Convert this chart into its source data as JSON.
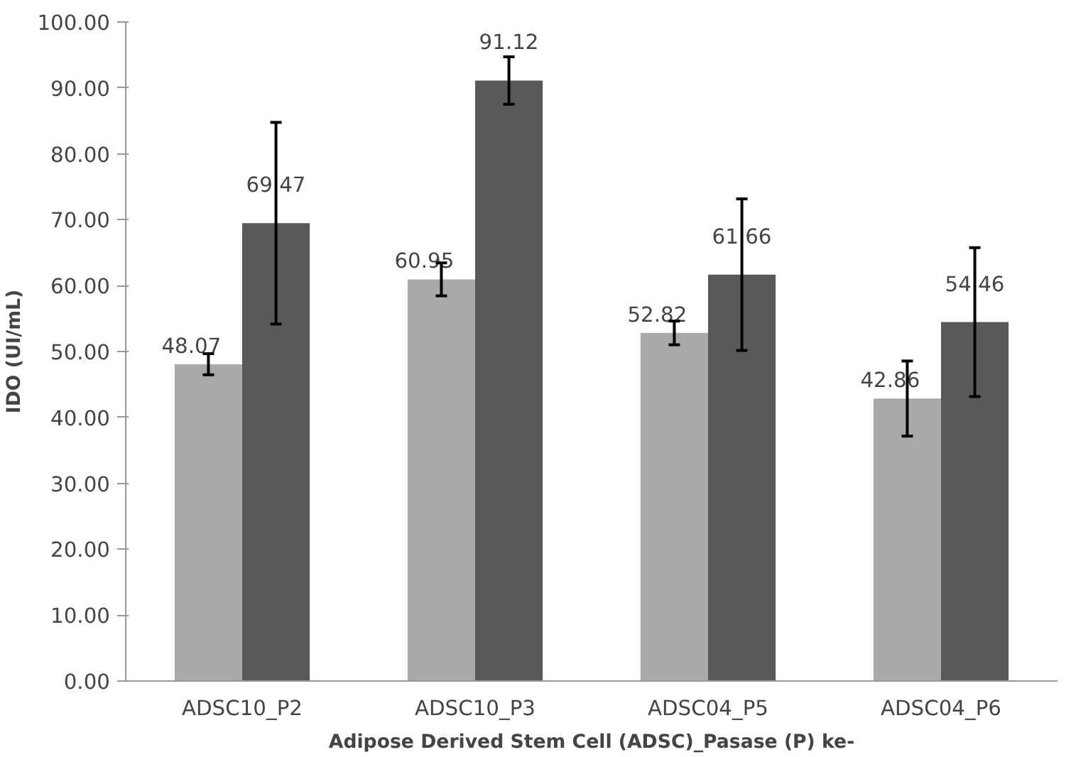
{
  "chart_data": {
    "type": "bar",
    "ylabel": "IDO (UI/mL)",
    "xlabel": "Adipose Derived Stem Cell (ADSC)_Pasase (P) ke-",
    "categories": [
      "ADSC10_P2",
      "ADSC10_P3",
      "ADSC04_P5",
      "ADSC04_P6"
    ],
    "series": [
      {
        "color": "#a9a9a9",
        "values": [
          48.07,
          60.95,
          52.82,
          42.86
        ],
        "errors": [
          1.6,
          2.5,
          1.8,
          5.7
        ]
      },
      {
        "color": "#595959",
        "values": [
          69.47,
          91.12,
          61.66,
          54.46
        ],
        "errors": [
          15.3,
          3.6,
          11.5,
          11.3
        ]
      }
    ],
    "ylim": [
      0,
      100
    ],
    "yticks": [
      {
        "value": 0,
        "label": "0.00"
      },
      {
        "value": 10,
        "label": "10.00"
      },
      {
        "value": 20,
        "label": "20.00"
      },
      {
        "value": 30,
        "label": "30.00"
      },
      {
        "value": 40,
        "label": "40.00"
      },
      {
        "value": 50,
        "label": "50.00"
      },
      {
        "value": 60,
        "label": "60.00"
      },
      {
        "value": 70,
        "label": "70.00"
      },
      {
        "value": 80,
        "label": "80.00"
      },
      {
        "value": 90,
        "label": "90.00"
      },
      {
        "value": 100,
        "label": "100.00"
      }
    ],
    "data_labels": true,
    "grid": false
  }
}
